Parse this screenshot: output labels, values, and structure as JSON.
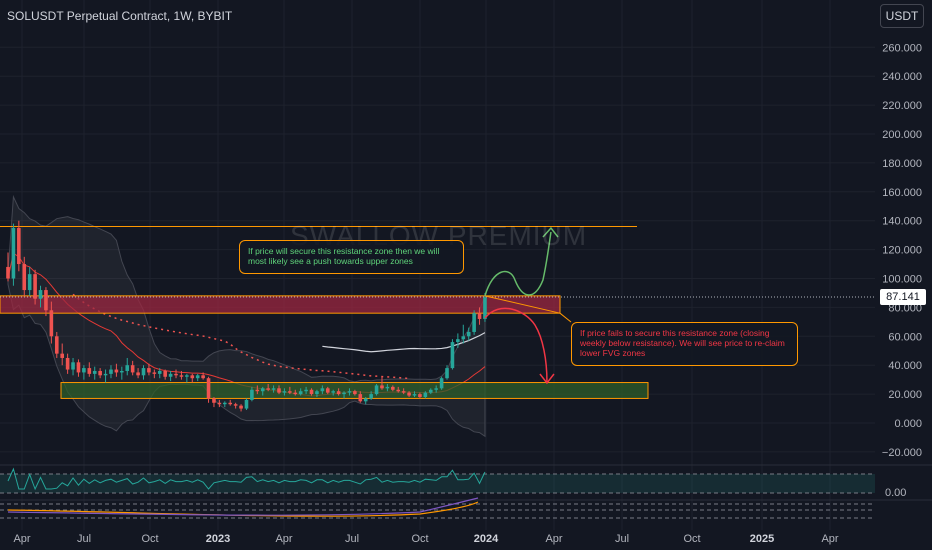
{
  "header": {
    "symbol_title": "SOLUSDT Perpetual Contract, 1W, BYBIT",
    "currency_button": "USDT",
    "watermark": "SWALLOW PREMIUM"
  },
  "last_price": "87.141",
  "annotations": {
    "bullish_note": "If price will secure this resistance zone then we will most likely see a push towards upper zones",
    "bearish_note": "If price fails to secure this resistance zone (closing weekly below resistance). We will see price to re-claim lower FVG zones"
  },
  "colors": {
    "background": "#131722",
    "up_candle": "#26a69a",
    "down_candle": "#ef5350",
    "zone_border": "#ff9800",
    "resistance_zone": "#9c2740",
    "fvg_zone": "#2e5e2a",
    "bullish_path": "#66bb6a",
    "bearish_path": "#f23645"
  },
  "chart_data": {
    "type": "candlestick",
    "y_ticks": [
      "260.000",
      "240.000",
      "220.000",
      "200.000",
      "180.000",
      "160.000",
      "140.000",
      "120.000",
      "100.000",
      "80.000",
      "60.000",
      "40.000",
      "20.000",
      "0.000",
      "−20.000"
    ],
    "x_ticks": [
      "Apr",
      "Jul",
      "Oct",
      "2023",
      "Apr",
      "Jul",
      "Oct",
      "2024",
      "Apr",
      "Jul",
      "Oct",
      "2025",
      "Apr"
    ],
    "ylim": [
      -28,
      270
    ],
    "oscillator_label": "0.00",
    "zones": [
      {
        "name": "resistance",
        "low": 76,
        "high": 88
      },
      {
        "name": "fvg",
        "low": 17,
        "high": 28
      },
      {
        "name": "upper-target-line",
        "value": 136
      }
    ],
    "candles": [
      {
        "o": 108,
        "h": 118,
        "l": 98,
        "c": 100
      },
      {
        "o": 100,
        "h": 138,
        "l": 95,
        "c": 135
      },
      {
        "o": 135,
        "h": 140,
        "l": 105,
        "c": 110
      },
      {
        "o": 110,
        "h": 115,
        "l": 88,
        "c": 92
      },
      {
        "o": 92,
        "h": 108,
        "l": 88,
        "c": 103
      },
      {
        "o": 103,
        "h": 106,
        "l": 82,
        "c": 86
      },
      {
        "o": 86,
        "h": 95,
        "l": 80,
        "c": 92
      },
      {
        "o": 92,
        "h": 94,
        "l": 74,
        "c": 78
      },
      {
        "o": 78,
        "h": 84,
        "l": 55,
        "c": 60
      },
      {
        "o": 60,
        "h": 63,
        "l": 45,
        "c": 48
      },
      {
        "o": 48,
        "h": 55,
        "l": 40,
        "c": 45
      },
      {
        "o": 45,
        "h": 48,
        "l": 34,
        "c": 37
      },
      {
        "o": 37,
        "h": 45,
        "l": 33,
        "c": 42
      },
      {
        "o": 42,
        "h": 44,
        "l": 32,
        "c": 35
      },
      {
        "o": 35,
        "h": 40,
        "l": 30,
        "c": 38
      },
      {
        "o": 38,
        "h": 42,
        "l": 32,
        "c": 34
      },
      {
        "o": 34,
        "h": 39,
        "l": 30,
        "c": 36
      },
      {
        "o": 36,
        "h": 38,
        "l": 31,
        "c": 33
      },
      {
        "o": 33,
        "h": 37,
        "l": 28,
        "c": 34
      },
      {
        "o": 34,
        "h": 40,
        "l": 31,
        "c": 37
      },
      {
        "o": 37,
        "h": 41,
        "l": 32,
        "c": 35
      },
      {
        "o": 35,
        "h": 39,
        "l": 30,
        "c": 36
      },
      {
        "o": 36,
        "h": 45,
        "l": 33,
        "c": 40
      },
      {
        "o": 40,
        "h": 43,
        "l": 33,
        "c": 35
      },
      {
        "o": 35,
        "h": 38,
        "l": 31,
        "c": 33
      },
      {
        "o": 33,
        "h": 40,
        "l": 30,
        "c": 38
      },
      {
        "o": 38,
        "h": 41,
        "l": 33,
        "c": 35
      },
      {
        "o": 35,
        "h": 37,
        "l": 31,
        "c": 34
      },
      {
        "o": 34,
        "h": 38,
        "l": 31,
        "c": 36
      },
      {
        "o": 36,
        "h": 37,
        "l": 30,
        "c": 32
      },
      {
        "o": 32,
        "h": 36,
        "l": 29,
        "c": 34
      },
      {
        "o": 34,
        "h": 37,
        "l": 31,
        "c": 33
      },
      {
        "o": 33,
        "h": 36,
        "l": 30,
        "c": 32
      },
      {
        "o": 32,
        "h": 34,
        "l": 28,
        "c": 33
      },
      {
        "o": 33,
        "h": 34,
        "l": 28,
        "c": 31
      },
      {
        "o": 31,
        "h": 34,
        "l": 29,
        "c": 33
      },
      {
        "o": 33,
        "h": 35,
        "l": 30,
        "c": 31
      },
      {
        "o": 31,
        "h": 32,
        "l": 14,
        "c": 17
      },
      {
        "o": 17,
        "h": 18,
        "l": 11,
        "c": 14
      },
      {
        "o": 14,
        "h": 16,
        "l": 11,
        "c": 13
      },
      {
        "o": 13,
        "h": 15,
        "l": 11,
        "c": 14
      },
      {
        "o": 14,
        "h": 16,
        "l": 12,
        "c": 13
      },
      {
        "o": 13,
        "h": 14,
        "l": 10,
        "c": 12
      },
      {
        "o": 12,
        "h": 13,
        "l": 8,
        "c": 10
      },
      {
        "o": 10,
        "h": 17,
        "l": 9,
        "c": 16
      },
      {
        "o": 16,
        "h": 25,
        "l": 15,
        "c": 23
      },
      {
        "o": 23,
        "h": 26,
        "l": 20,
        "c": 22
      },
      {
        "o": 22,
        "h": 25,
        "l": 19,
        "c": 24
      },
      {
        "o": 24,
        "h": 27,
        "l": 22,
        "c": 23
      },
      {
        "o": 23,
        "h": 26,
        "l": 21,
        "c": 24
      },
      {
        "o": 24,
        "h": 26,
        "l": 20,
        "c": 21
      },
      {
        "o": 21,
        "h": 24,
        "l": 19,
        "c": 22
      },
      {
        "o": 22,
        "h": 25,
        "l": 20,
        "c": 21
      },
      {
        "o": 21,
        "h": 23,
        "l": 19,
        "c": 20
      },
      {
        "o": 20,
        "h": 24,
        "l": 19,
        "c": 22
      },
      {
        "o": 22,
        "h": 25,
        "l": 20,
        "c": 23
      },
      {
        "o": 23,
        "h": 24,
        "l": 19,
        "c": 20
      },
      {
        "o": 20,
        "h": 23,
        "l": 18,
        "c": 22
      },
      {
        "o": 22,
        "h": 26,
        "l": 20,
        "c": 24
      },
      {
        "o": 24,
        "h": 25,
        "l": 20,
        "c": 21
      },
      {
        "o": 21,
        "h": 23,
        "l": 19,
        "c": 22
      },
      {
        "o": 22,
        "h": 24,
        "l": 19,
        "c": 20
      },
      {
        "o": 20,
        "h": 22,
        "l": 17,
        "c": 21
      },
      {
        "o": 21,
        "h": 24,
        "l": 19,
        "c": 22
      },
      {
        "o": 22,
        "h": 23,
        "l": 19,
        "c": 20
      },
      {
        "o": 20,
        "h": 22,
        "l": 14,
        "c": 15
      },
      {
        "o": 15,
        "h": 18,
        "l": 13,
        "c": 17
      },
      {
        "o": 17,
        "h": 22,
        "l": 16,
        "c": 20
      },
      {
        "o": 20,
        "h": 27,
        "l": 19,
        "c": 26
      },
      {
        "o": 26,
        "h": 32,
        "l": 23,
        "c": 24
      },
      {
        "o": 24,
        "h": 27,
        "l": 22,
        "c": 25
      },
      {
        "o": 25,
        "h": 26,
        "l": 22,
        "c": 23
      },
      {
        "o": 23,
        "h": 25,
        "l": 21,
        "c": 22
      },
      {
        "o": 22,
        "h": 24,
        "l": 20,
        "c": 21
      },
      {
        "o": 21,
        "h": 22,
        "l": 18,
        "c": 19
      },
      {
        "o": 19,
        "h": 22,
        "l": 18,
        "c": 20
      },
      {
        "o": 20,
        "h": 21,
        "l": 17,
        "c": 18
      },
      {
        "o": 18,
        "h": 22,
        "l": 17,
        "c": 21
      },
      {
        "o": 21,
        "h": 24,
        "l": 20,
        "c": 23
      },
      {
        "o": 23,
        "h": 26,
        "l": 21,
        "c": 24
      },
      {
        "o": 24,
        "h": 32,
        "l": 23,
        "c": 31
      },
      {
        "o": 31,
        "h": 40,
        "l": 30,
        "c": 38
      },
      {
        "o": 38,
        "h": 58,
        "l": 37,
        "c": 56
      },
      {
        "o": 56,
        "h": 62,
        "l": 52,
        "c": 58
      },
      {
        "o": 58,
        "h": 68,
        "l": 55,
        "c": 60
      },
      {
        "o": 60,
        "h": 66,
        "l": 57,
        "c": 63
      },
      {
        "o": 63,
        "h": 78,
        "l": 61,
        "c": 76
      },
      {
        "o": 76,
        "h": 80,
        "l": 68,
        "c": 72
      },
      {
        "o": 72,
        "h": 90,
        "l": 70,
        "c": 87
      }
    ]
  }
}
